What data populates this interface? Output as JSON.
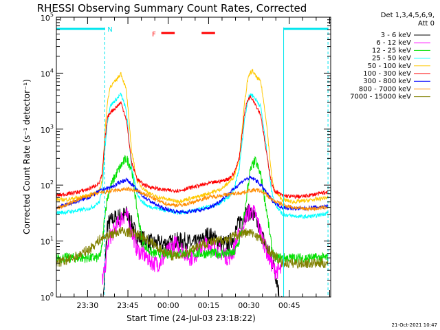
{
  "chart_data": {
    "type": "line",
    "title": "RHESSI Observing Summary Count Rates, Corrected",
    "xlabel": "Start Time (24-Jul-03 23:18:22)",
    "ylabel": "Corrected Count Rate (s⁻¹ detector⁻¹)",
    "x_units": "minutes after 23:18:22",
    "xlim": [
      0,
      102
    ],
    "ylim_log10": [
      0,
      5
    ],
    "xticks": [
      {
        "label": "23:30",
        "value": 11.6
      },
      {
        "label": "23:45",
        "value": 26.6
      },
      {
        "label": "00:00",
        "value": 41.6
      },
      {
        "label": "00:15",
        "value": 56.6
      },
      {
        "label": "00:30",
        "value": 71.6
      },
      {
        "label": "00:45",
        "value": 86.6
      }
    ],
    "yticks": [
      {
        "base": "10",
        "exp": "0",
        "value": 1
      },
      {
        "base": "10",
        "exp": "1",
        "value": 10
      },
      {
        "base": "10",
        "exp": "2",
        "value": 100
      },
      {
        "base": "10",
        "exp": "3",
        "value": 1000
      },
      {
        "base": "10",
        "exp": "4",
        "value": 10000
      },
      {
        "base": "10",
        "exp": "5",
        "value": 100000
      }
    ],
    "legend_header": [
      "Det 1,3,4,5,6,9,",
      "Att 0"
    ],
    "series": [
      {
        "name": "3 - 6 keV",
        "color": "#000000",
        "x": [
          17,
          17.5,
          18,
          18.5,
          19,
          20,
          22,
          24,
          26,
          28,
          30,
          32,
          34,
          36,
          38,
          40,
          42,
          44,
          46,
          48,
          50,
          52,
          54,
          56,
          58,
          60,
          62,
          64,
          66,
          68,
          70,
          72,
          74,
          76,
          78,
          80,
          82,
          83,
          84
        ],
        "y": [
          0.5,
          1,
          3,
          8,
          20,
          22,
          26,
          28,
          30,
          20,
          12,
          11,
          10,
          9,
          9,
          9,
          9,
          10,
          10,
          10,
          9,
          9,
          10,
          13,
          12,
          10,
          9,
          9,
          12,
          22,
          30,
          33,
          25,
          14,
          8,
          5,
          2,
          1,
          0.8
        ]
      },
      {
        "name": "6 - 12 keV",
        "color": "#ff00ff",
        "x": [
          17,
          18,
          19,
          20,
          22,
          24,
          26,
          28,
          30,
          32,
          34,
          36,
          38,
          40,
          42,
          44,
          46,
          48,
          50,
          52,
          54,
          56,
          58,
          60,
          62,
          64,
          66,
          68,
          70,
          72,
          74,
          76,
          78,
          80,
          81,
          82,
          84
        ],
        "y": [
          2,
          3,
          8,
          12,
          17,
          25,
          30,
          15,
          7,
          6,
          5,
          4,
          4,
          5,
          7,
          9,
          8,
          6,
          5,
          6,
          8,
          9,
          8,
          7,
          6,
          5,
          7,
          13,
          25,
          35,
          30,
          14,
          7,
          4,
          3,
          3,
          3
        ]
      },
      {
        "name": "12 - 25 keV",
        "color": "#00e000",
        "x": [
          0,
          4,
          8,
          12,
          16,
          17,
          18,
          19,
          20,
          22,
          24,
          26,
          28,
          30,
          32,
          34,
          36,
          38,
          40,
          42,
          44,
          46,
          48,
          50,
          52,
          54,
          56,
          58,
          60,
          62,
          64,
          66,
          68,
          70,
          71,
          72,
          73,
          74,
          76,
          78,
          80,
          81,
          82,
          84,
          88,
          92,
          96,
          101
        ],
        "y": [
          5,
          5,
          5,
          5,
          5,
          8,
          30,
          60,
          90,
          150,
          220,
          300,
          200,
          35,
          10,
          7,
          6,
          6,
          6,
          6,
          6,
          6,
          6,
          6,
          6,
          6,
          6,
          6,
          6,
          6,
          6,
          6,
          10,
          30,
          80,
          170,
          230,
          270,
          150,
          40,
          8,
          5,
          5,
          5,
          5,
          5,
          5,
          5
        ]
      },
      {
        "name": "25 - 50 keV",
        "color": "#00ffff",
        "x": [
          0,
          4,
          8,
          12,
          14,
          16,
          17,
          18,
          19,
          20,
          22,
          24,
          26,
          28,
          30,
          32,
          34,
          36,
          38,
          40,
          42,
          44,
          46,
          48,
          50,
          52,
          54,
          56,
          58,
          60,
          62,
          64,
          66,
          68,
          70,
          71,
          72,
          73,
          74,
          76,
          78,
          80,
          81,
          84,
          88,
          92,
          96,
          101
        ],
        "y": [
          32,
          33,
          35,
          38,
          42,
          50,
          80,
          400,
          1400,
          2600,
          3300,
          4200,
          2200,
          200,
          70,
          50,
          42,
          40,
          38,
          36,
          35,
          33,
          32,
          33,
          34,
          36,
          38,
          40,
          42,
          45,
          52,
          60,
          80,
          200,
          1500,
          3000,
          4200,
          4000,
          3500,
          2500,
          500,
          80,
          50,
          30,
          28,
          27,
          28,
          32
        ]
      },
      {
        "name": "50 - 100 keV",
        "color": "#ffc800",
        "x": [
          0,
          4,
          8,
          12,
          14,
          16,
          17,
          18,
          19,
          20,
          22,
          24,
          26,
          28,
          30,
          32,
          34,
          36,
          38,
          40,
          42,
          44,
          46,
          48,
          50,
          52,
          54,
          56,
          58,
          60,
          62,
          64,
          66,
          68,
          70,
          71,
          72,
          73,
          74,
          76,
          78,
          80,
          81,
          84,
          88,
          92,
          96,
          101
        ],
        "y": [
          55,
          55,
          60,
          65,
          70,
          80,
          120,
          800,
          3000,
          5800,
          7200,
          10000,
          5000,
          400,
          120,
          90,
          75,
          65,
          60,
          58,
          55,
          52,
          52,
          55,
          58,
          60,
          65,
          70,
          75,
          80,
          90,
          110,
          140,
          300,
          3000,
          7000,
          10000,
          11000,
          9000,
          7000,
          1500,
          150,
          80,
          55,
          50,
          52,
          55,
          60
        ]
      },
      {
        "name": "100 - 300 keV",
        "color": "#ff0000",
        "x": [
          0,
          4,
          8,
          12,
          14,
          16,
          17,
          18,
          19,
          20,
          22,
          24,
          26,
          28,
          30,
          32,
          34,
          36,
          38,
          40,
          42,
          44,
          46,
          48,
          50,
          52,
          54,
          56,
          58,
          60,
          62,
          64,
          66,
          68,
          70,
          71,
          72,
          73,
          74,
          76,
          78,
          80,
          81,
          84,
          88,
          92,
          96,
          101
        ],
        "y": [
          65,
          70,
          75,
          85,
          95,
          110,
          150,
          600,
          1600,
          2000,
          2400,
          3000,
          1500,
          250,
          130,
          105,
          95,
          90,
          85,
          82,
          80,
          80,
          80,
          85,
          90,
          95,
          100,
          105,
          110,
          115,
          120,
          130,
          160,
          300,
          2000,
          3200,
          3800,
          3500,
          2800,
          1800,
          400,
          110,
          80,
          65,
          62,
          63,
          68,
          75
        ]
      },
      {
        "name": "300 - 800 keV",
        "color": "#0000ff",
        "x": [
          0,
          4,
          8,
          12,
          14,
          16,
          18,
          20,
          22,
          24,
          26,
          28,
          30,
          32,
          34,
          36,
          38,
          40,
          42,
          44,
          46,
          48,
          50,
          52,
          54,
          56,
          58,
          60,
          62,
          64,
          66,
          68,
          70,
          72,
          74,
          76,
          78,
          80,
          82,
          84,
          88,
          92,
          96,
          101
        ],
        "y": [
          40,
          45,
          52,
          60,
          68,
          78,
          86,
          90,
          100,
          115,
          125,
          105,
          80,
          65,
          55,
          48,
          42,
          38,
          36,
          34,
          33,
          33,
          34,
          35,
          36,
          38,
          42,
          48,
          58,
          70,
          85,
          105,
          125,
          135,
          125,
          100,
          75,
          55,
          45,
          40,
          38,
          38,
          40,
          42
        ]
      },
      {
        "name": "800 - 7000 keV",
        "color": "#ff8c00",
        "x": [
          0,
          4,
          8,
          12,
          16,
          20,
          24,
          26,
          28,
          30,
          32,
          34,
          36,
          38,
          40,
          42,
          44,
          46,
          48,
          50,
          52,
          54,
          56,
          58,
          60,
          62,
          64,
          66,
          68,
          70,
          72,
          74,
          76,
          78,
          80,
          84,
          88,
          92,
          96,
          101
        ],
        "y": [
          38,
          45,
          55,
          65,
          72,
          78,
          82,
          85,
          82,
          78,
          72,
          65,
          58,
          52,
          48,
          45,
          44,
          44,
          45,
          48,
          52,
          56,
          60,
          62,
          64,
          66,
          68,
          70,
          72,
          75,
          80,
          82,
          78,
          68,
          55,
          45,
          40,
          38,
          38,
          40
        ]
      },
      {
        "name": "7000 - 15000 keV",
        "color": "#808000",
        "x": [
          0,
          4,
          8,
          12,
          14,
          16,
          18,
          20,
          22,
          24,
          26,
          28,
          30,
          32,
          34,
          36,
          38,
          40,
          42,
          44,
          46,
          48,
          50,
          52,
          54,
          56,
          58,
          60,
          62,
          64,
          66,
          68,
          70,
          72,
          74,
          76,
          78,
          80,
          82,
          84,
          88,
          92,
          96,
          101
        ],
        "y": [
          4,
          4.5,
          5.5,
          7,
          8.5,
          10.5,
          12,
          13,
          14,
          15,
          14.5,
          14,
          13,
          12,
          10.5,
          9,
          7.5,
          6.5,
          5.8,
          5.4,
          5.5,
          6,
          7,
          8,
          8.8,
          9.2,
          9.5,
          10,
          10.5,
          11,
          12,
          13,
          14,
          14,
          13,
          11,
          8,
          6,
          5,
          4,
          4,
          4,
          4,
          4
        ]
      }
    ],
    "annotations": {
      "top_bar_color": "#00e5ee",
      "n_label": "N",
      "n_label_color": "#00e5ee",
      "f_label": "F",
      "f_label_color": "#ff0000",
      "night_intervals": [
        [
          0,
          18
        ],
        [
          84.5,
          101
        ]
      ],
      "flag_intervals": [
        [
          39,
          44
        ],
        [
          54,
          59
        ]
      ]
    },
    "footer_date": "21-Oct-2021 10:47"
  }
}
